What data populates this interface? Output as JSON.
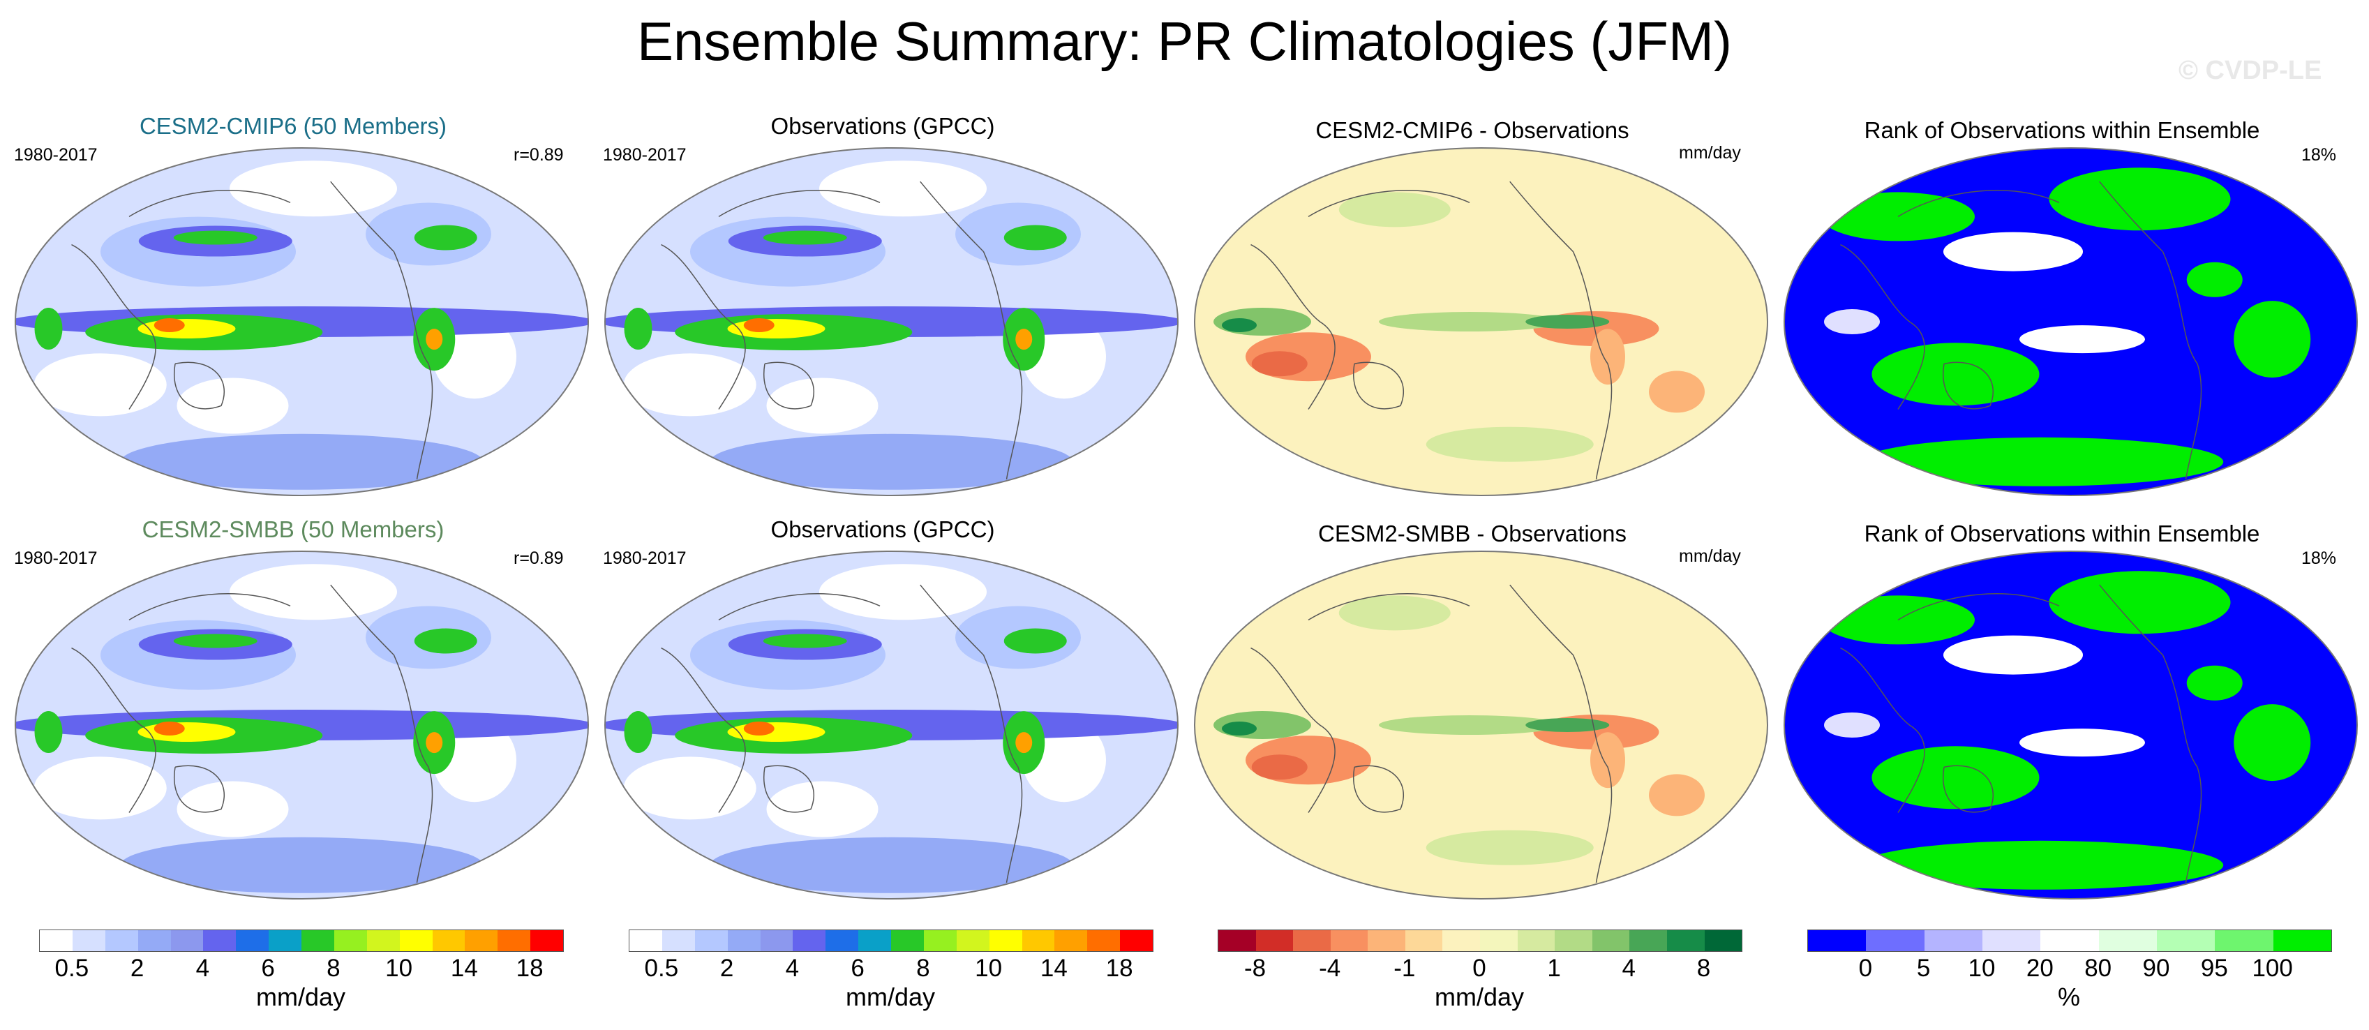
{
  "title": "Ensemble Summary: PR Climatologies (JFM)",
  "watermark": "© CVDP-LE",
  "colors": {
    "model_cmip6_title": "#1a6e88",
    "model_smbb_title": "#5d8a5d",
    "rank_low": "#0000ff",
    "rank_high": "#00ee00"
  },
  "rows": [
    {
      "panels": [
        {
          "title": "CESM2-CMIP6 (50 Members)",
          "left": "1980-2017",
          "right": "r=0.89",
          "kind": "precip"
        },
        {
          "title": "Observations (GPCC)",
          "left": "1980-2017",
          "right": "",
          "kind": "precip"
        },
        {
          "title": "CESM2-CMIP6 - Observations",
          "left": "",
          "right": "mm/day",
          "kind": "diff"
        },
        {
          "title": "Rank of Observations within Ensemble",
          "left": "",
          "right": "18%",
          "kind": "rank"
        }
      ]
    },
    {
      "panels": [
        {
          "title": "CESM2-SMBB (50 Members)",
          "left": "1980-2017",
          "right": "r=0.89",
          "kind": "precip"
        },
        {
          "title": "Observations (GPCC)",
          "left": "1980-2017",
          "right": "",
          "kind": "precip"
        },
        {
          "title": "CESM2-SMBB - Observations",
          "left": "",
          "right": "mm/day",
          "kind": "diff"
        },
        {
          "title": "Rank of Observations within Ensemble",
          "left": "",
          "right": "18%",
          "kind": "rank"
        }
      ]
    }
  ],
  "chart_data": [
    {
      "type": "colorbar",
      "name": "precipitation",
      "units": "mm/day",
      "tick_labels": [
        "0.5",
        "2",
        "4",
        "6",
        "8",
        "10",
        "14",
        "18"
      ],
      "levels": [
        0.5,
        1,
        2,
        3,
        4,
        5,
        6,
        7,
        8,
        9,
        10,
        12,
        14,
        16,
        18
      ],
      "colors": [
        "#ffffff",
        "#d6e0ff",
        "#b4c8ff",
        "#94aaf6",
        "#8c98ee",
        "#6464ee",
        "#1e6ee8",
        "#0aa0c8",
        "#28c828",
        "#96f020",
        "#d2f51e",
        "#ffff00",
        "#ffc800",
        "#ffa000",
        "#ff6e00",
        "#ff0000"
      ]
    },
    {
      "type": "colorbar",
      "name": "precipitation",
      "units": "mm/day",
      "tick_labels": [
        "0.5",
        "2",
        "4",
        "6",
        "8",
        "10",
        "14",
        "18"
      ],
      "levels": [
        0.5,
        1,
        2,
        3,
        4,
        5,
        6,
        7,
        8,
        9,
        10,
        12,
        14,
        16,
        18
      ],
      "colors": [
        "#ffffff",
        "#d6e0ff",
        "#b4c8ff",
        "#94aaf6",
        "#8c98ee",
        "#6464ee",
        "#1e6ee8",
        "#0aa0c8",
        "#28c828",
        "#96f020",
        "#d2f51e",
        "#ffff00",
        "#ffc800",
        "#ffa000",
        "#ff6e00",
        "#ff0000"
      ]
    },
    {
      "type": "colorbar",
      "name": "difference",
      "units": "mm/day",
      "tick_labels": [
        "-8",
        "-4",
        "-1",
        "0",
        "1",
        "4",
        "8"
      ],
      "levels": [
        -8,
        -6,
        -4,
        -2,
        -1,
        -0.5,
        0,
        0.5,
        1,
        2,
        4,
        6,
        8
      ],
      "colors": [
        "#a50026",
        "#d22d27",
        "#ea6a46",
        "#f89060",
        "#fcb478",
        "#fdd898",
        "#fcf2be",
        "#f4f6bc",
        "#d6eaa0",
        "#b2db86",
        "#82c46a",
        "#48a656",
        "#168c48",
        "#006837"
      ]
    },
    {
      "type": "colorbar",
      "name": "rank",
      "units": "%",
      "tick_labels": [
        "0",
        "5",
        "10",
        "20",
        "80",
        "90",
        "95",
        "100"
      ],
      "levels": [
        0,
        5,
        10,
        20,
        80,
        90,
        95,
        100
      ],
      "colors": [
        "#0000ff",
        "#6e6eff",
        "#b4b4ff",
        "#e0e0ff",
        "#ffffff",
        "#e0ffe0",
        "#b4ffb4",
        "#6ef56e",
        "#00ee00"
      ]
    }
  ]
}
